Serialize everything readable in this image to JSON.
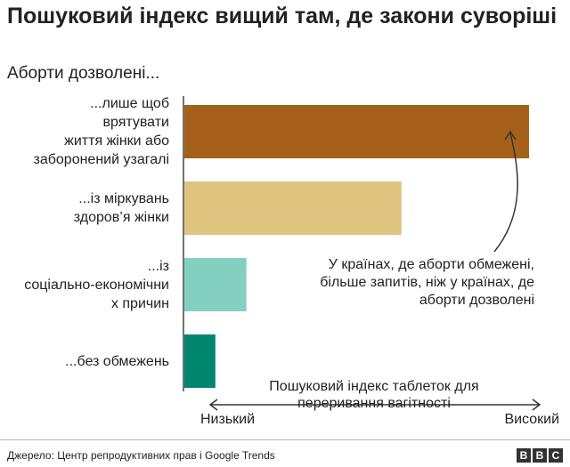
{
  "header": {
    "title": "Пошуковий індекс вищий там, де закони суворіші",
    "subtitle": "Аборти дозволені..."
  },
  "chart_data": {
    "type": "bar",
    "orientation": "horizontal",
    "categories": [
      "...лише щоб врятувати життя жінки або заборонений узагалі",
      "...із міркувань здоров’я жінки",
      "...із соціально-економічних причин",
      "...без обмежень"
    ],
    "category_lines": [
      [
        "...лише щоб",
        "врятувати",
        "життя жінки або",
        "заборонений узагалі"
      ],
      [
        "...із міркувань",
        "здоров’я жінки"
      ],
      [
        "...із",
        "соціально-економічни",
        "х причин"
      ],
      [
        "...без обмежень"
      ]
    ],
    "values": [
      100,
      63,
      18,
      9
    ],
    "colors": [
      "#a5611c",
      "#dfc47f",
      "#83d0c1",
      "#00856f"
    ],
    "xlim": [
      0,
      100
    ],
    "xlabel": "Пошуковий індекс таблеток для переривання вагітності",
    "scale_low": "Низький",
    "scale_high": "Високий",
    "annotation": "У країнах, де аборти обмежені, більше запитів, ніж у країнах, де аборти дозволені",
    "annotation_lines": [
      "У країнах, де аборти обмежені,",
      "більше запитів, ніж у країнах, де",
      "аборти дозволені"
    ],
    "grid": false
  },
  "footer": {
    "source": "Джерело: Центр репродуктивних прав і Google Trends",
    "logo": [
      "B",
      "B",
      "C"
    ]
  }
}
